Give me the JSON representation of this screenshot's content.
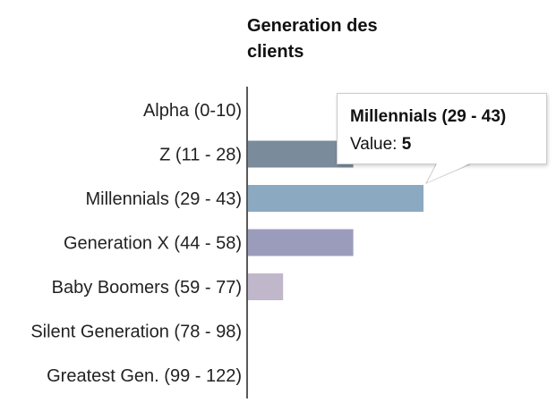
{
  "chart_data": {
    "type": "bar",
    "orientation": "horizontal",
    "title": "Generation des clients",
    "categories": [
      "Alpha (0-10)",
      "Z (11 - 28)",
      "Millennials (29 - 43)",
      "Generation X (44 - 58)",
      "Baby Boomers (59 - 77)",
      "Silent Generation (78 - 98)",
      "Greatest Gen. (99 - 122)"
    ],
    "values": [
      0,
      3,
      5,
      3,
      1,
      0,
      0
    ],
    "colors": [
      "#9aa7b8",
      "#7a8b9b",
      "#8ba9c1",
      "#9b9bbc",
      "#c1b7cb",
      "#c9c1d2",
      "#c9c1d2"
    ],
    "xlim": [
      0,
      5
    ],
    "grid": false,
    "legend": "none"
  },
  "tooltip": {
    "title": "Millennials (29 - 43)",
    "value_label": "Value:",
    "value": "5"
  }
}
